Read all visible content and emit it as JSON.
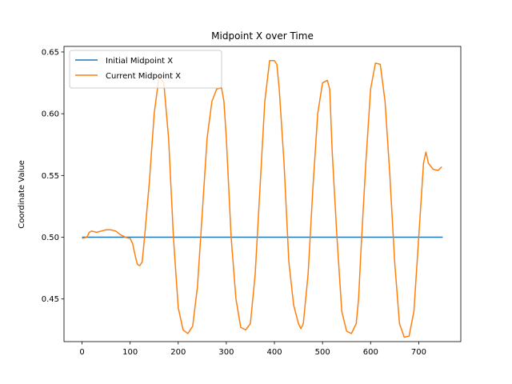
{
  "chart_data": {
    "type": "line",
    "title": "Midpoint X over Time",
    "xlabel": "",
    "ylabel": "Coordinate Value",
    "xlim": [
      -37.5,
      787.5
    ],
    "ylim": [
      0.4155,
      0.6545
    ],
    "xticks": [
      0,
      100,
      200,
      300,
      400,
      500,
      600,
      700
    ],
    "yticks": [
      0.45,
      0.5,
      0.55,
      0.6,
      0.65
    ],
    "ytick_labels": [
      "0.45",
      "0.50",
      "0.55",
      "0.60",
      "0.65"
    ],
    "grid": false,
    "legend_position": "top-left",
    "series": [
      {
        "name": "Initial Midpoint X",
        "color": "#1f77b4",
        "x": [
          0,
          750
        ],
        "y": [
          0.5,
          0.5
        ]
      },
      {
        "name": "Current Midpoint X",
        "color": "#ff7f0e",
        "x": [
          0,
          10,
          15,
          20,
          30,
          40,
          50,
          60,
          70,
          80,
          90,
          100,
          105,
          110,
          115,
          120,
          125,
          130,
          140,
          150,
          160,
          170,
          180,
          190,
          200,
          210,
          220,
          230,
          240,
          250,
          260,
          270,
          280,
          290,
          295,
          300,
          310,
          320,
          330,
          340,
          350,
          360,
          370,
          380,
          390,
          400,
          405,
          410,
          420,
          430,
          440,
          450,
          455,
          460,
          470,
          480,
          490,
          500,
          510,
          515,
          520,
          530,
          540,
          550,
          560,
          570,
          575,
          580,
          590,
          600,
          610,
          620,
          630,
          640,
          650,
          660,
          670,
          680,
          690,
          700,
          710,
          715,
          720,
          730,
          740,
          748
        ],
        "y": [
          0.499,
          0.5,
          0.504,
          0.505,
          0.504,
          0.505,
          0.506,
          0.506,
          0.505,
          0.502,
          0.5,
          0.499,
          0.495,
          0.486,
          0.478,
          0.477,
          0.48,
          0.5,
          0.545,
          0.6,
          0.63,
          0.625,
          0.58,
          0.5,
          0.443,
          0.425,
          0.422,
          0.428,
          0.46,
          0.52,
          0.58,
          0.61,
          0.62,
          0.621,
          0.61,
          0.58,
          0.5,
          0.45,
          0.427,
          0.425,
          0.43,
          0.47,
          0.54,
          0.61,
          0.643,
          0.643,
          0.64,
          0.62,
          0.56,
          0.48,
          0.445,
          0.43,
          0.426,
          0.43,
          0.47,
          0.54,
          0.6,
          0.625,
          0.627,
          0.62,
          0.57,
          0.5,
          0.44,
          0.424,
          0.422,
          0.43,
          0.45,
          0.49,
          0.56,
          0.62,
          0.641,
          0.64,
          0.61,
          0.55,
          0.48,
          0.43,
          0.419,
          0.42,
          0.44,
          0.5,
          0.56,
          0.569,
          0.56,
          0.555,
          0.554,
          0.557
        ]
      }
    ]
  }
}
